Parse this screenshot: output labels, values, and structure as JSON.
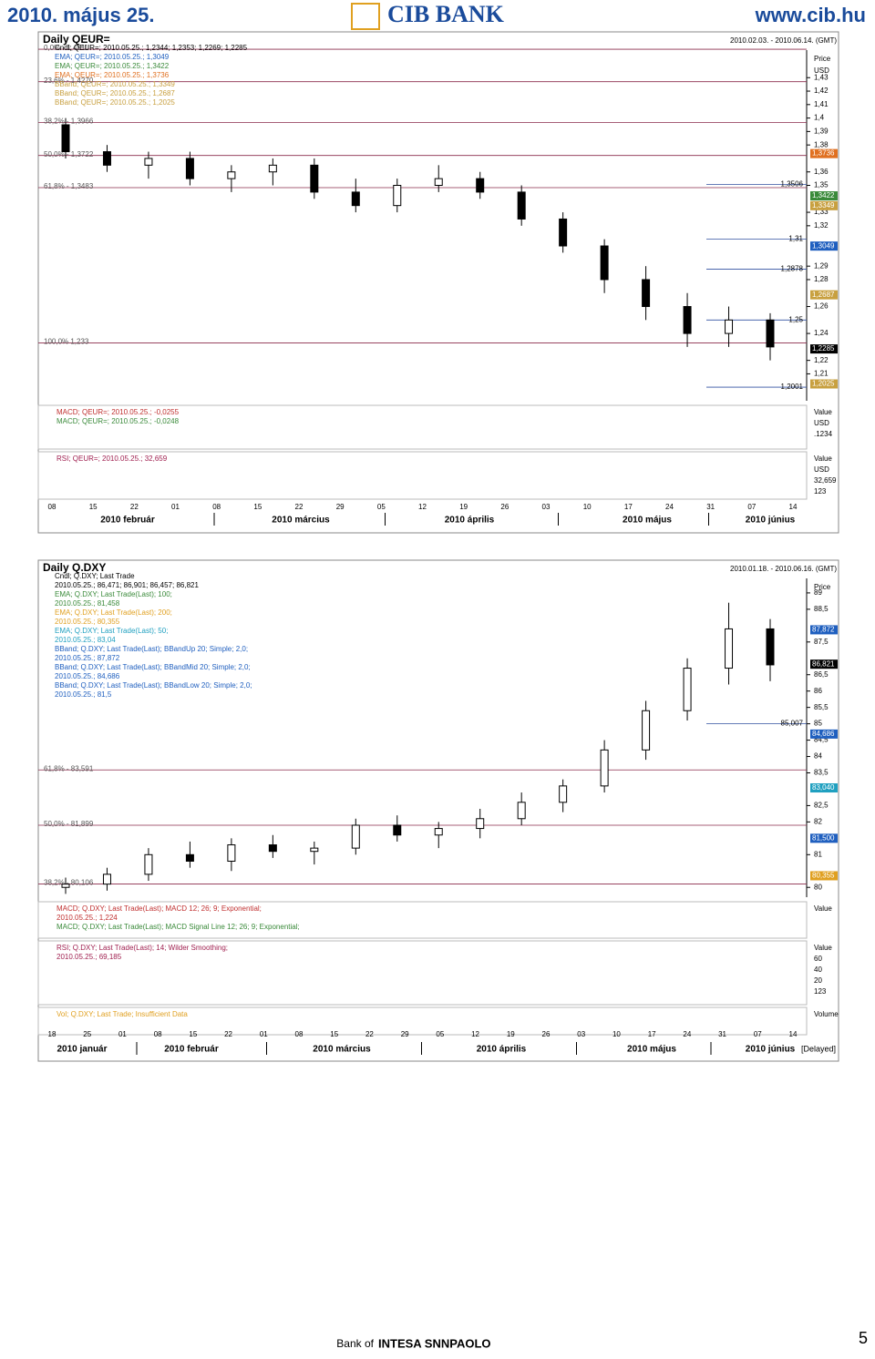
{
  "header": {
    "date": "2010. május 25.",
    "bank": "CIB BANK",
    "url": "www.cib.hu"
  },
  "footer": {
    "bank": "Bank of",
    "brand": "INTESA SNNPAOLO",
    "page": "5"
  },
  "chart_data": [
    {
      "type": "candlestick",
      "title": "Daily QEUR=",
      "range": "2010.02.03. - 2010.06.14. (GMT)",
      "axis_title": "Price",
      "axis_unit": "USD",
      "ylim": [
        1.19,
        1.464
      ],
      "yticks": [
        {
          "value": 1.43,
          "label": "1,43"
        },
        {
          "value": 1.42,
          "label": "1,42"
        },
        {
          "value": 1.41,
          "label": "1,41"
        },
        {
          "value": 1.4,
          "label": "1,4"
        },
        {
          "value": 1.39,
          "label": "1,39"
        },
        {
          "value": 1.38,
          "label": "1,38"
        },
        {
          "value": 1.36,
          "label": "1,36"
        },
        {
          "value": 1.35,
          "label": "1,35"
        },
        {
          "value": 1.33,
          "label": "1,33"
        },
        {
          "value": 1.32,
          "label": "1,32"
        },
        {
          "value": 1.29,
          "label": "1,29"
        },
        {
          "value": 1.28,
          "label": "1,28"
        },
        {
          "value": 1.26,
          "label": "1,26"
        },
        {
          "value": 1.24,
          "label": "1,24"
        },
        {
          "value": 1.22,
          "label": "1,22"
        },
        {
          "value": 1.21,
          "label": "1,21"
        }
      ],
      "legend": [
        {
          "text": "Cndl; QEUR=; 2010.05.25.; 1,2344; 1,2353; 1,2269; 1,2285",
          "color": "#000000"
        },
        {
          "text": "EMA; QEUR=; 2010.05.25.; 1,3049",
          "color": "#1f5fbf"
        },
        {
          "text": "EMA; QEUR=; 2010.05.25.; 1,3422",
          "color": "#3a8a3a"
        },
        {
          "text": "EMA; QEUR=; 2010.05.25.; 1,3736",
          "color": "#e07020"
        },
        {
          "text": "BBand; QEUR=; 2010.05.25.; 1,3349",
          "color": "#c8a040"
        },
        {
          "text": "BBand; QEUR=; 2010.05.25.; 1,2687",
          "color": "#c8a040"
        },
        {
          "text": "BBand; QEUR=; 2010.05.25.; 1,2025",
          "color": "#c8a040"
        }
      ],
      "fib": [
        {
          "value": 1.4511,
          "label": "0,0% - 1,4511"
        },
        {
          "value": 1.427,
          "label": "23,6% - 1,4270"
        },
        {
          "value": 1.3966,
          "label": "38,2% - 1,3966"
        },
        {
          "value": 1.3722,
          "label": "50,0% - 1,3722"
        },
        {
          "value": 1.3483,
          "label": "61,8% - 1,3483"
        },
        {
          "value": 1.233,
          "label": "100,0% 1,233"
        }
      ],
      "tags": [
        {
          "value": 1.3736,
          "label": "1,3736",
          "color": "#e07020"
        },
        {
          "value": 1.3422,
          "label": "1,3422",
          "color": "#3a8a3a"
        },
        {
          "value": 1.3349,
          "label": "1,3349",
          "color": "#c8a040"
        },
        {
          "value": 1.3049,
          "label": "1,3049",
          "color": "#1f5fbf"
        },
        {
          "value": 1.2687,
          "label": "1,2687",
          "color": "#c8a040"
        },
        {
          "value": 1.2285,
          "label": "1,2285",
          "color": "#000000"
        },
        {
          "value": 1.2025,
          "label": "1,2025",
          "color": "#c8a040"
        }
      ],
      "annotations": [
        {
          "value": 1.3506,
          "label": "1,3506"
        },
        {
          "value": 1.31,
          "label": "1,31"
        },
        {
          "value": 1.2878,
          "label": "1,2878"
        },
        {
          "value": 1.25,
          "label": "1,25"
        },
        {
          "value": 1.2001,
          "label": "1,2001"
        }
      ],
      "panels": [
        {
          "lines": [
            {
              "text": "MACD; QEUR=; 2010.05.25.; -0,0255",
              "color": "#c03030"
            },
            {
              "text": "MACD; QEUR=; 2010.05.25.; -0,0248",
              "color": "#3a8a3a"
            }
          ],
          "right": [
            "Value",
            "USD",
            ".1234"
          ]
        },
        {
          "lines": [
            {
              "text": "RSI; QEUR=; 2010.05.25.; 32,659",
              "color": "#a02050"
            }
          ],
          "right": [
            "Value",
            "USD",
            "32,659",
            "123"
          ]
        }
      ],
      "x_labels": [
        "08",
        "15",
        "22",
        "01",
        "08",
        "15",
        "22",
        "29",
        "05",
        "12",
        "19",
        "26",
        "03",
        "10",
        "17",
        "24",
        "31",
        "07",
        "14"
      ],
      "months": [
        "2010 február",
        "2010 március",
        "2010 április",
        "2010 május",
        "2010 június"
      ],
      "open": [
        1.395,
        1.375,
        1.365,
        1.37,
        1.355,
        1.36,
        1.365,
        1.345,
        1.335,
        1.35,
        1.355,
        1.345,
        1.325,
        1.305,
        1.28,
        1.26,
        1.24,
        1.25
      ],
      "high": [
        1.4,
        1.38,
        1.375,
        1.375,
        1.365,
        1.37,
        1.37,
        1.355,
        1.355,
        1.365,
        1.36,
        1.35,
        1.33,
        1.31,
        1.29,
        1.27,
        1.26,
        1.255
      ],
      "low": [
        1.37,
        1.36,
        1.355,
        1.35,
        1.345,
        1.35,
        1.34,
        1.33,
        1.33,
        1.345,
        1.34,
        1.32,
        1.3,
        1.27,
        1.25,
        1.23,
        1.23,
        1.22
      ],
      "close": [
        1.375,
        1.365,
        1.37,
        1.355,
        1.36,
        1.365,
        1.345,
        1.335,
        1.35,
        1.355,
        1.345,
        1.325,
        1.305,
        1.28,
        1.26,
        1.24,
        1.25,
        1.23
      ]
    },
    {
      "type": "candlestick",
      "title": "Daily Q.DXY",
      "range": "2010.01.18. - 2010.06.16. (GMT)",
      "axis_title": "Price",
      "ylim": [
        79.7,
        90
      ],
      "yticks": [
        89,
        {
          "value": 88.5,
          "label": "88,5"
        },
        {
          "value": 87.5,
          "label": "87,5"
        },
        {
          "value": 86.5,
          "label": "86,5"
        },
        86,
        {
          "value": 85.5,
          "label": "85,5"
        },
        85,
        {
          "value": 84.5,
          "label": "84,5"
        },
        84,
        {
          "value": 83.5,
          "label": "83,5"
        },
        {
          "value": 82.5,
          "label": "82,5"
        },
        82,
        81,
        80
      ],
      "legend": [
        {
          "text": "Cndl; Q.DXY; Last Trade",
          "color": "#000000"
        },
        {
          "text": "2010.05.25.; 86,471; 86,901; 86,457; 86,821",
          "color": "#000000"
        },
        {
          "text": "EMA; Q.DXY; Last Trade(Last); 100;",
          "color": "#3a8a3a"
        },
        {
          "text": "2010.05.25.; 81,458",
          "color": "#3a8a3a"
        },
        {
          "text": "EMA; Q.DXY; Last Trade(Last); 200;",
          "color": "#e0a020"
        },
        {
          "text": "2010.05.25.; 80,355",
          "color": "#e0a020"
        },
        {
          "text": "EMA; Q.DXY; Last Trade(Last); 50;",
          "color": "#20a0c0"
        },
        {
          "text": "2010.05.25.; 83,04",
          "color": "#20a0c0"
        },
        {
          "text": "BBand; Q.DXY; Last Trade(Last); BBandUp 20; Simple; 2,0;",
          "color": "#1f5fbf"
        },
        {
          "text": "2010.05.25.; 87,872",
          "color": "#1f5fbf"
        },
        {
          "text": "BBand; Q.DXY; Last Trade(Last); BBandMid 20; Simple; 2,0;",
          "color": "#1f5fbf"
        },
        {
          "text": "2010.05.25.; 84,686",
          "color": "#1f5fbf"
        },
        {
          "text": "BBand; Q.DXY; Last Trade(Last); BBandLow 20; Simple; 2,0;",
          "color": "#1f5fbf"
        },
        {
          "text": "2010.05.25.; 81,5",
          "color": "#1f5fbf"
        }
      ],
      "fib": [
        {
          "value": 83.591,
          "label": "61,8% - 83,591"
        },
        {
          "value": 81.899,
          "label": "50,0% - 81,899"
        },
        {
          "value": 80.106,
          "label": "38,2% - 80,106"
        }
      ],
      "tags": [
        {
          "value": 87.872,
          "label": "87,872",
          "color": "#1f5fbf"
        },
        {
          "value": 86.821,
          "label": "86,821",
          "color": "#000000"
        },
        {
          "value": 84.686,
          "label": "84,686",
          "color": "#1f5fbf"
        },
        {
          "value": 83.04,
          "label": "83,040",
          "color": "#20a0c0"
        },
        {
          "value": 81.5,
          "label": "81,500",
          "color": "#1f5fbf"
        },
        {
          "value": 80.355,
          "label": "80,355",
          "color": "#e0a020"
        }
      ],
      "annotations": [
        {
          "value": 85.007,
          "label": "85,007"
        }
      ],
      "panels": [
        {
          "lines": [
            {
              "text": "MACD; Q.DXY; Last Trade(Last); MACD 12; 26; 9; Exponential;",
              "color": "#c03030"
            },
            {
              "text": "2010.05.25.; 1,224",
              "color": "#c03030"
            },
            {
              "text": "MACD; Q.DXY; Last Trade(Last); MACD Signal Line 12; 26; 9; Exponential;",
              "color": "#3a8a3a"
            }
          ],
          "right": [
            "Value"
          ]
        },
        {
          "lines": [
            {
              "text": "RSI; Q.DXY; Last Trade(Last); 14; Wilder Smoothing;",
              "color": "#a02050"
            },
            {
              "text": "2010.05.25.; 69,185",
              "color": "#a02050"
            }
          ],
          "right": [
            "Value",
            "60",
            "40",
            "20",
            "123"
          ]
        },
        {
          "lines": [
            {
              "text": "Vol; Q.DXY; Last Trade; Insufficient Data",
              "color": "#e0a020"
            }
          ],
          "right": [
            "Volume"
          ]
        }
      ],
      "x_labels": [
        "18",
        "25",
        "01",
        "08",
        "15",
        "22",
        "01",
        "08",
        "15",
        "22",
        "29",
        "05",
        "12",
        "19",
        "26",
        "03",
        "10",
        "17",
        "24",
        "31",
        "07",
        "14"
      ],
      "months": [
        "2010 január",
        "2010 február",
        "2010 március",
        "2010 április",
        "2010 május",
        "2010 június"
      ],
      "delayed": "[Delayed]",
      "open": [
        80.0,
        80.1,
        80.4,
        81.0,
        80.8,
        81.3,
        81.1,
        81.2,
        81.9,
        81.6,
        81.8,
        82.1,
        82.6,
        83.1,
        84.2,
        85.4,
        86.7,
        87.9
      ],
      "high": [
        80.3,
        80.6,
        81.2,
        81.4,
        81.5,
        81.6,
        81.4,
        82.1,
        82.2,
        82.0,
        82.4,
        82.9,
        83.3,
        84.5,
        85.7,
        87.0,
        88.7,
        88.2
      ],
      "low": [
        79.8,
        79.9,
        80.2,
        80.6,
        80.5,
        80.9,
        80.7,
        81.0,
        81.4,
        81.2,
        81.5,
        81.9,
        82.3,
        82.9,
        83.9,
        85.1,
        86.2,
        86.3
      ],
      "close": [
        80.1,
        80.4,
        81.0,
        80.8,
        81.3,
        81.1,
        81.2,
        81.9,
        81.6,
        81.8,
        82.1,
        82.6,
        83.1,
        84.2,
        85.4,
        86.7,
        87.9,
        86.8
      ]
    }
  ]
}
